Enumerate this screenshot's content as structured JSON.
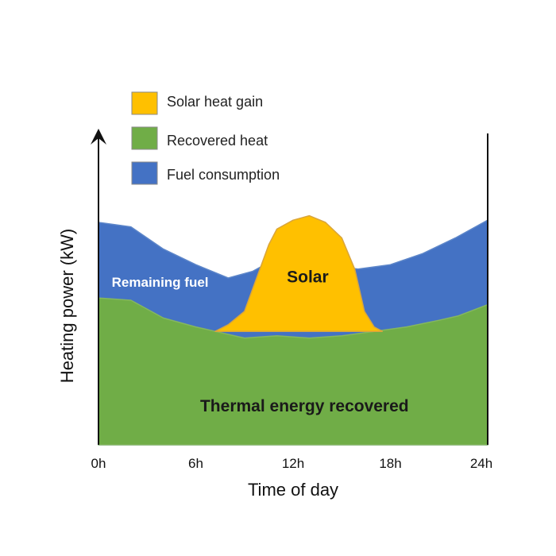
{
  "chart_data": {
    "type": "area",
    "xlabel": "Time of day",
    "ylabel": "Heating power (kW)",
    "xlim": [
      0,
      24
    ],
    "ylim": [
      0,
      100
    ],
    "x_ticks": [
      "0h",
      "6h",
      "12h",
      "18h",
      "24h"
    ],
    "x_tick_values": [
      0,
      6,
      12,
      18,
      24
    ],
    "y_ticks_shown": false,
    "grid": false,
    "legend_position": "top-left",
    "legend": [
      {
        "label": "Solar heat gain",
        "color": "#ffc000"
      },
      {
        "label": "Recovered heat",
        "color": "#70ad47"
      },
      {
        "label": "Fuel consumption",
        "color": "#4472c4"
      }
    ],
    "series": [
      {
        "name": "Fuel consumption",
        "color": "#4472c4",
        "edge_color": "#5d86c9",
        "points": [
          [
            0,
            100
          ],
          [
            2,
            98
          ],
          [
            4,
            88
          ],
          [
            6,
            81
          ],
          [
            8,
            75
          ],
          [
            9.5,
            78
          ],
          [
            10,
            80
          ],
          [
            12,
            81
          ],
          [
            14,
            81
          ],
          [
            16,
            79
          ],
          [
            18,
            81
          ],
          [
            20,
            86
          ],
          [
            22,
            93
          ],
          [
            24,
            101
          ]
        ]
      },
      {
        "name": "Recovered heat",
        "color": "#70ad47",
        "edge_color": "#85b75f",
        "points": [
          [
            0,
            66
          ],
          [
            2,
            65
          ],
          [
            4,
            57
          ],
          [
            6,
            53
          ],
          [
            7.2,
            51
          ],
          [
            9,
            48
          ],
          [
            11,
            49
          ],
          [
            13,
            48
          ],
          [
            15,
            49
          ],
          [
            17,
            51
          ],
          [
            19,
            53
          ],
          [
            21,
            56
          ],
          [
            22.2,
            58
          ],
          [
            24,
            63
          ]
        ]
      },
      {
        "name": "Solar heat gain",
        "color": "#ffc000",
        "edge_color": "#d9a53c",
        "points": [
          [
            7.2,
            51
          ],
          [
            8,
            54
          ],
          [
            9,
            60
          ],
          [
            10,
            80
          ],
          [
            10.5,
            90
          ],
          [
            11,
            97
          ],
          [
            12,
            101
          ],
          [
            13,
            103
          ],
          [
            14,
            100
          ],
          [
            15,
            93
          ],
          [
            15.8,
            79
          ],
          [
            16.4,
            60
          ],
          [
            17,
            53
          ],
          [
            17.5,
            51
          ]
        ]
      }
    ],
    "annotations": [
      {
        "text": "Remaining fuel",
        "x": 3.8,
        "y": 71,
        "color": "#ffffff"
      },
      {
        "text": "Solar",
        "x": 12.9,
        "y": 73,
        "color": "#1a1a1a"
      },
      {
        "text": "Thermal energy recovered",
        "x": 12.7,
        "y": 15,
        "color": "#1a1a1a"
      }
    ]
  }
}
